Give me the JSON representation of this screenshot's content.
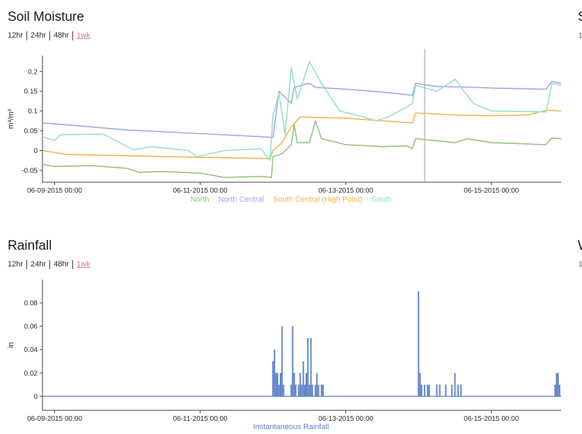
{
  "moisture_panel": {
    "title": "Soil Moisture",
    "ranges": [
      "12hr",
      "24hr",
      "48hr",
      "1wk"
    ],
    "active_range": "1wk",
    "cut_title": "S",
    "cut_sub": "1"
  },
  "rain_panel": {
    "title": "Rainfall",
    "ranges": [
      "12hr",
      "24hr",
      "48hr",
      "1wk"
    ],
    "active_range": "1wk",
    "cut_title": "W",
    "cut_sub": "1"
  },
  "colors": {
    "north": "#8fbf7f",
    "north_central": "#9fa6d6",
    "south_central": "#f5b04a",
    "south": "#92dfc6",
    "rainfall": "#5b80c5",
    "cursor": "#aaaaaa"
  },
  "chart_data": [
    {
      "type": "line",
      "title": "Soil Moisture",
      "ylabel": "m³/m³",
      "xlabel": "",
      "xlim": [
        "2015-06-08 20:00",
        "2015-06-15 23:00"
      ],
      "ylim": [
        -0.08,
        0.24
      ],
      "x_ticks": [
        "06-09-2015 00:00",
        "06-11-2015 00:00",
        "06-13-2015 00:00",
        "06-15-2015 00:00"
      ],
      "y_ticks": [
        "-0.05",
        "0",
        "0.05",
        "0.1",
        "0.15",
        "0.2"
      ],
      "y_tick_values": [
        -0.05,
        0,
        0.05,
        0.1,
        0.15,
        0.2
      ],
      "cursor_x": "2015-06-14 02:00",
      "legend_position": "bottom",
      "series": [
        {
          "name": "North",
          "color_key": "north",
          "points": [
            [
              "2015-06-08 20:00",
              -0.035
            ],
            [
              "2015-06-09 00:00",
              -0.04
            ],
            [
              "2015-06-09 12:00",
              -0.038
            ],
            [
              "2015-06-10 00:00",
              -0.045
            ],
            [
              "2015-06-10 04:00",
              -0.055
            ],
            [
              "2015-06-10 12:00",
              -0.053
            ],
            [
              "2015-06-11 00:00",
              -0.057
            ],
            [
              "2015-06-11 08:00",
              -0.068
            ],
            [
              "2015-06-11 20:00",
              -0.065
            ],
            [
              "2015-06-11 23:30",
              -0.068
            ],
            [
              "2015-06-12 00:00",
              -0.015
            ],
            [
              "2015-06-12 03:00",
              -0.008
            ],
            [
              "2015-06-12 06:00",
              0.015
            ],
            [
              "2015-06-12 07:00",
              0.065
            ],
            [
              "2015-06-12 08:00",
              0.02
            ],
            [
              "2015-06-12 12:00",
              0.02
            ],
            [
              "2015-06-12 14:00",
              0.075
            ],
            [
              "2015-06-12 16:00",
              0.03
            ],
            [
              "2015-06-13 00:00",
              0.015
            ],
            [
              "2015-06-13 12:00",
              0.01
            ],
            [
              "2015-06-13 20:00",
              0.012
            ],
            [
              "2015-06-13 22:00",
              0.005
            ],
            [
              "2015-06-13 23:00",
              0.03
            ],
            [
              "2015-06-14 12:00",
              0.02
            ],
            [
              "2015-06-14 16:00",
              0.03
            ],
            [
              "2015-06-15 00:00",
              0.02
            ],
            [
              "2015-06-15 18:00",
              0.015
            ],
            [
              "2015-06-15 20:00",
              0.032
            ],
            [
              "2015-06-15 23:00",
              0.03
            ]
          ]
        },
        {
          "name": "North Central",
          "color_key": "north_central",
          "points": [
            [
              "2015-06-08 20:00",
              0.07
            ],
            [
              "2015-06-09 12:00",
              0.06
            ],
            [
              "2015-06-10 00:00",
              0.052
            ],
            [
              "2015-06-11 00:00",
              0.043
            ],
            [
              "2015-06-11 20:00",
              0.035
            ],
            [
              "2015-06-12 00:00",
              0.033
            ],
            [
              "2015-06-12 02:00",
              0.15
            ],
            [
              "2015-06-12 06:00",
              0.12
            ],
            [
              "2015-06-12 07:00",
              0.16
            ],
            [
              "2015-06-12 12:00",
              0.17
            ],
            [
              "2015-06-12 14:00",
              0.16
            ],
            [
              "2015-06-13 00:00",
              0.155
            ],
            [
              "2015-06-13 12:00",
              0.148
            ],
            [
              "2015-06-13 22:00",
              0.14
            ],
            [
              "2015-06-13 23:00",
              0.17
            ],
            [
              "2015-06-14 06:00",
              0.162
            ],
            [
              "2015-06-14 18:00",
              0.16
            ],
            [
              "2015-06-15 00:00",
              0.158
            ],
            [
              "2015-06-15 18:00",
              0.155
            ],
            [
              "2015-06-15 20:00",
              0.175
            ],
            [
              "2015-06-15 23:00",
              0.17
            ]
          ]
        },
        {
          "name": "South Central (High Point)",
          "color_key": "south_central",
          "points": [
            [
              "2015-06-08 20:00",
              0.0
            ],
            [
              "2015-06-09 00:00",
              -0.005
            ],
            [
              "2015-06-09 04:00",
              -0.01
            ],
            [
              "2015-06-10 00:00",
              -0.013
            ],
            [
              "2015-06-11 00:00",
              -0.017
            ],
            [
              "2015-06-11 23:00",
              -0.02
            ],
            [
              "2015-06-12 00:00",
              0.0
            ],
            [
              "2015-06-12 03:00",
              0.02
            ],
            [
              "2015-06-12 06:00",
              0.06
            ],
            [
              "2015-06-12 09:00",
              0.085
            ],
            [
              "2015-06-13 00:00",
              0.082
            ],
            [
              "2015-06-13 12:00",
              0.075
            ],
            [
              "2015-06-13 22:00",
              0.07
            ],
            [
              "2015-06-13 23:00",
              0.095
            ],
            [
              "2015-06-14 12:00",
              0.09
            ],
            [
              "2015-06-15 00:00",
              0.088
            ],
            [
              "2015-06-15 12:00",
              0.09
            ],
            [
              "2015-06-15 18:00",
              0.102
            ],
            [
              "2015-06-15 23:00",
              0.1
            ]
          ]
        },
        {
          "name": "South",
          "color_key": "south",
          "points": [
            [
              "2015-06-08 20:00",
              0.035
            ],
            [
              "2015-06-09 00:00",
              0.025
            ],
            [
              "2015-06-09 02:00",
              0.04
            ],
            [
              "2015-06-09 16:00",
              0.042
            ],
            [
              "2015-06-10 02:00",
              0.002
            ],
            [
              "2015-06-10 08:00",
              0.01
            ],
            [
              "2015-06-10 20:00",
              0.0
            ],
            [
              "2015-06-10 23:00",
              -0.015
            ],
            [
              "2015-06-11 08:00",
              0.0
            ],
            [
              "2015-06-11 20:00",
              0.005
            ],
            [
              "2015-06-11 23:00",
              -0.025
            ],
            [
              "2015-06-12 00:00",
              0.09
            ],
            [
              "2015-06-12 02:00",
              0.145
            ],
            [
              "2015-06-12 04:00",
              0.04
            ],
            [
              "2015-06-12 06:00",
              0.21
            ],
            [
              "2015-06-12 08:00",
              0.13
            ],
            [
              "2015-06-12 12:00",
              0.225
            ],
            [
              "2015-06-12 16:00",
              0.17
            ],
            [
              "2015-06-12 22:00",
              0.1
            ],
            [
              "2015-06-13 06:00",
              0.085
            ],
            [
              "2015-06-13 10:00",
              0.075
            ],
            [
              "2015-06-13 14:00",
              0.085
            ],
            [
              "2015-06-13 20:00",
              0.11
            ],
            [
              "2015-06-13 22:00",
              0.12
            ],
            [
              "2015-06-13 23:00",
              0.165
            ],
            [
              "2015-06-14 06:00",
              0.15
            ],
            [
              "2015-06-14 12:00",
              0.18
            ],
            [
              "2015-06-14 18:00",
              0.12
            ],
            [
              "2015-06-15 00:00",
              0.1
            ],
            [
              "2015-06-15 18:00",
              0.098
            ],
            [
              "2015-06-15 20:00",
              0.17
            ],
            [
              "2015-06-15 23:00",
              0.165
            ]
          ]
        }
      ]
    },
    {
      "type": "bar",
      "title": "Rainfall",
      "ylabel": "in",
      "xlabel": "",
      "xlim": [
        "2015-06-08 20:00",
        "2015-06-15 23:00"
      ],
      "ylim": [
        -0.012,
        0.1
      ],
      "x_ticks": [
        "06-09-2015 00:00",
        "06-11-2015 00:00",
        "06-13-2015 00:00",
        "06-15-2015 00:00"
      ],
      "y_ticks": [
        "0",
        "0.02",
        "0.04",
        "0.06",
        "0.08"
      ],
      "y_tick_values": [
        0,
        0.02,
        0.04,
        0.06,
        0.08
      ],
      "legend_position": "bottom",
      "series": [
        {
          "name": "Instantaneous Rainfall",
          "color_key": "rainfall",
          "points": [
            [
              "2015-06-12 00:00",
              0.03
            ],
            [
              "2015-06-12 00:30",
              0.04
            ],
            [
              "2015-06-12 01:00",
              0.02
            ],
            [
              "2015-06-12 01:30",
              0.02
            ],
            [
              "2015-06-12 02:00",
              0.01
            ],
            [
              "2015-06-12 02:30",
              0.02
            ],
            [
              "2015-06-12 03:00",
              0.06
            ],
            [
              "2015-06-12 03:30",
              0.01
            ],
            [
              "2015-06-12 06:00",
              0.01
            ],
            [
              "2015-06-12 06:30",
              0.06
            ],
            [
              "2015-06-12 07:00",
              0.02
            ],
            [
              "2015-06-12 07:30",
              0.01
            ],
            [
              "2015-06-12 08:30",
              0.01
            ],
            [
              "2015-06-12 09:00",
              0.02
            ],
            [
              "2015-06-12 09:30",
              0.01
            ],
            [
              "2015-06-12 10:00",
              0.03
            ],
            [
              "2015-06-12 10:30",
              0.01
            ],
            [
              "2015-06-12 11:00",
              0.02
            ],
            [
              "2015-06-12 11:30",
              0.05
            ],
            [
              "2015-06-12 12:00",
              0.01
            ],
            [
              "2015-06-12 12:30",
              0.05
            ],
            [
              "2015-06-12 13:00",
              0.01
            ],
            [
              "2015-06-12 14:00",
              0.01
            ],
            [
              "2015-06-12 14:30",
              0.02
            ],
            [
              "2015-06-12 15:00",
              0.01
            ],
            [
              "2015-06-12 16:00",
              0.01
            ],
            [
              "2015-06-12 16:30",
              0.01
            ],
            [
              "2015-06-14 00:00",
              0.09
            ],
            [
              "2015-06-14 00:30",
              0.02
            ],
            [
              "2015-06-14 01:00",
              0.01
            ],
            [
              "2015-06-14 02:00",
              0.01
            ],
            [
              "2015-06-14 03:00",
              0.01
            ],
            [
              "2015-06-14 03:30",
              0.01
            ],
            [
              "2015-06-14 06:00",
              0.01
            ],
            [
              "2015-06-14 07:00",
              0.01
            ],
            [
              "2015-06-14 09:00",
              0.01
            ],
            [
              "2015-06-14 11:00",
              0.01
            ],
            [
              "2015-06-14 12:00",
              0.02
            ],
            [
              "2015-06-14 13:00",
              0.01
            ],
            [
              "2015-06-14 14:00",
              0.01
            ],
            [
              "2015-06-15 21:00",
              0.01
            ],
            [
              "2015-06-15 21:30",
              0.02
            ],
            [
              "2015-06-15 22:00",
              0.02
            ],
            [
              "2015-06-15 22:30",
              0.01
            ]
          ]
        }
      ]
    }
  ]
}
